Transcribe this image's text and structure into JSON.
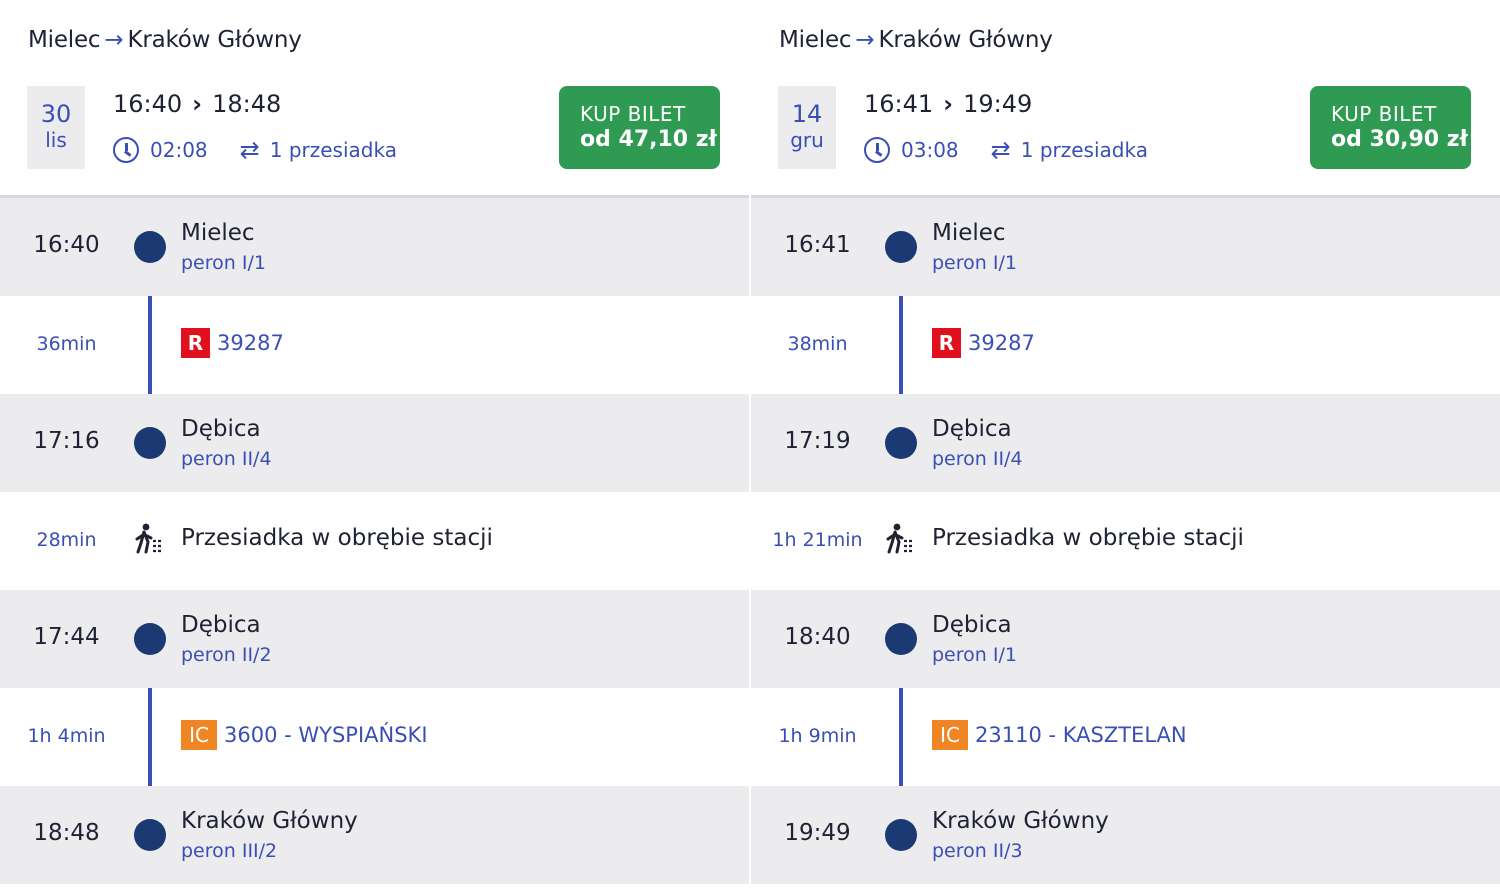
{
  "panels": [
    {
      "origin": "Mielec",
      "destination": "Kraków Główny",
      "arrow": "→",
      "date_day": "30",
      "date_month": "lis",
      "depart": "16:40",
      "arrive": "18:48",
      "duration": "02:08",
      "changes": "1 przesiadka",
      "buy_label": "KUP BILET",
      "buy_price": "od 47,10 zł",
      "stops": [
        {
          "time": "16:40",
          "station": "Mielec",
          "platform": "peron I/1"
        },
        {
          "leg_duration": "36min",
          "carrier": "R",
          "train": "39287"
        },
        {
          "time": "17:16",
          "station": "Dębica",
          "platform": "peron II/4"
        },
        {
          "leg_duration": "28min",
          "transfer": "Przesiadka w obrębie stacji"
        },
        {
          "time": "17:44",
          "station": "Dębica",
          "platform": "peron II/2"
        },
        {
          "leg_duration": "1h 4min",
          "carrier": "IC",
          "train": "3600 - WYSPIAŃSKI"
        },
        {
          "time": "18:48",
          "station": "Kraków Główny",
          "platform": "peron III/2"
        }
      ]
    },
    {
      "origin": "Mielec",
      "destination": "Kraków Główny",
      "arrow": "→",
      "date_day": "14",
      "date_month": "gru",
      "depart": "16:41",
      "arrive": "19:49",
      "duration": "03:08",
      "changes": "1 przesiadka",
      "buy_label": "KUP BILET",
      "buy_price": "od 30,90 zł",
      "stops": [
        {
          "time": "16:41",
          "station": "Mielec",
          "platform": "peron I/1"
        },
        {
          "leg_duration": "38min",
          "carrier": "R",
          "train": "39287"
        },
        {
          "time": "17:19",
          "station": "Dębica",
          "platform": "peron II/4"
        },
        {
          "leg_duration": "1h 21min",
          "transfer": "Przesiadka w obrębie stacji"
        },
        {
          "time": "18:40",
          "station": "Dębica",
          "platform": "peron I/1"
        },
        {
          "leg_duration": "1h 9min",
          "carrier": "IC",
          "train": "23110 - KASZTELAN"
        },
        {
          "time": "19:49",
          "station": "Kraków Główny",
          "platform": "peron II/3"
        }
      ]
    }
  ],
  "icons": {
    "clock": "clock-icon",
    "swap": "transfer-arrows-icon",
    "walk": "walking-person-icon",
    "arrow": "arrow-right-icon",
    "chevron": "chevron-right-icon"
  },
  "colors": {
    "accent": "#3a4fb4",
    "buy": "#2e9a52",
    "regio": "#e0101e",
    "intercity": "#f08524",
    "node": "#1b3a74"
  }
}
